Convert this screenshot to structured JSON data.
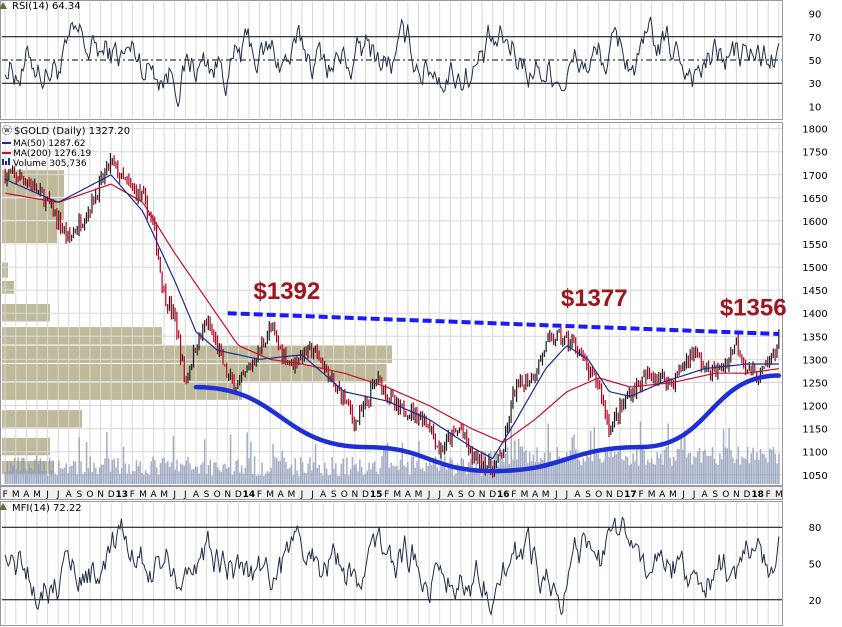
{
  "colors": {
    "background": "#ffffff",
    "grid": "#d8d8d8",
    "price_bar": "#1c1c1c",
    "down_bar": "#b3001b",
    "ma50": "#1c2a8c",
    "ma200": "#c8102e",
    "volume": "#8c98b8",
    "volume_by_price": "#b3ae88",
    "annotation_text": "#a0141e",
    "resistance_line": "#1a1aff",
    "cup_curve": "#1f2fd6",
    "indicator_line": "#1f2f4a",
    "overbought_fill": "#9e9a6c",
    "oversold_fill": "#b03a6a"
  },
  "chart_data": [
    {
      "type": "line",
      "panel": "rsi",
      "title": "RSI(14) 64.34",
      "ylim": [
        0,
        100
      ],
      "y_ticks": [
        "90",
        "70",
        "50",
        "30",
        "10"
      ],
      "reference_lines": [
        70,
        50,
        30
      ],
      "last_value": 64.34
    },
    {
      "type": "line",
      "panel": "price",
      "title": "$GOLD (Daily) 1327.20",
      "ylim": [
        1030,
        1810
      ],
      "y_ticks": [
        "1800",
        "1750",
        "1700",
        "1650",
        "1600",
        "1550",
        "1500",
        "1450",
        "1400",
        "1350",
        "1300",
        "1250",
        "1200",
        "1150",
        "1100",
        "1050"
      ],
      "x_ticks": [
        "F",
        "M",
        "A",
        "M",
        "J",
        "J",
        "A",
        "S",
        "O",
        "N",
        "D",
        "13",
        "F",
        "M",
        "A",
        "M",
        "J",
        "J",
        "A",
        "S",
        "O",
        "N",
        "D",
        "14",
        "F",
        "M",
        "A",
        "M",
        "J",
        "J",
        "A",
        "S",
        "O",
        "N",
        "D",
        "15",
        "F",
        "M",
        "A",
        "M",
        "J",
        "J",
        "A",
        "S",
        "O",
        "N",
        "D",
        "16",
        "F",
        "M",
        "A",
        "M",
        "J",
        "J",
        "A",
        "S",
        "O",
        "N",
        "D",
        "17",
        "F",
        "M",
        "A",
        "M",
        "J",
        "J",
        "A",
        "S",
        "O",
        "N",
        "D",
        "18",
        "F",
        "M"
      ],
      "year_ticks": [
        "13",
        "14",
        "15",
        "16",
        "17",
        "18"
      ],
      "series": [
        {
          "name": "MA(50) 1287.62",
          "last_value": 1287.62
        },
        {
          "name": "MA(200) 1276.19",
          "last_value": 1276.19
        },
        {
          "name": "Volume 305,736",
          "last_value": 305736
        }
      ],
      "price_path": [
        [
          0,
          1700
        ],
        [
          2,
          1690
        ],
        [
          4,
          1640
        ],
        [
          6,
          1560
        ],
        [
          8,
          1630
        ],
        [
          10,
          1730
        ],
        [
          11,
          1690
        ],
        [
          12,
          1670
        ],
        [
          13,
          1650
        ],
        [
          14,
          1590
        ],
        [
          15,
          1440
        ],
        [
          16,
          1390
        ],
        [
          17,
          1250
        ],
        [
          18,
          1330
        ],
        [
          19,
          1380
        ],
        [
          20,
          1330
        ],
        [
          21,
          1260
        ],
        [
          22,
          1240
        ],
        [
          23,
          1280
        ],
        [
          24,
          1320
        ],
        [
          25,
          1370
        ],
        [
          26,
          1320
        ],
        [
          27,
          1290
        ],
        [
          28,
          1310
        ],
        [
          29,
          1320
        ],
        [
          30,
          1290
        ],
        [
          31,
          1240
        ],
        [
          32,
          1220
        ],
        [
          33,
          1160
        ],
        [
          34,
          1200
        ],
        [
          35,
          1260
        ],
        [
          36,
          1230
        ],
        [
          37,
          1190
        ],
        [
          38,
          1190
        ],
        [
          39,
          1180
        ],
        [
          40,
          1160
        ],
        [
          41,
          1100
        ],
        [
          42,
          1130
        ],
        [
          43,
          1150
        ],
        [
          44,
          1090
        ],
        [
          45,
          1080
        ],
        [
          46,
          1060
        ],
        [
          47,
          1100
        ],
        [
          48,
          1230
        ],
        [
          49,
          1250
        ],
        [
          50,
          1270
        ],
        [
          51,
          1330
        ],
        [
          52,
          1350
        ],
        [
          53,
          1340
        ],
        [
          54,
          1330
        ],
        [
          55,
          1270
        ],
        [
          56,
          1250
        ],
        [
          57,
          1150
        ],
        [
          58,
          1190
        ],
        [
          59,
          1230
        ],
        [
          60,
          1250
        ],
        [
          61,
          1270
        ],
        [
          62,
          1260
        ],
        [
          63,
          1250
        ],
        [
          64,
          1290
        ],
        [
          65,
          1320
        ],
        [
          66,
          1280
        ],
        [
          67,
          1270
        ],
        [
          68,
          1290
        ],
        [
          69,
          1340
        ],
        [
          70,
          1280
        ],
        [
          71,
          1260
        ],
        [
          72,
          1290
        ],
        [
          73,
          1340
        ]
      ],
      "ma50_path": [
        [
          0,
          1690
        ],
        [
          5,
          1640
        ],
        [
          10,
          1700
        ],
        [
          13,
          1620
        ],
        [
          16,
          1470
        ],
        [
          18,
          1360
        ],
        [
          20,
          1320
        ],
        [
          24,
          1300
        ],
        [
          28,
          1310
        ],
        [
          32,
          1230
        ],
        [
          36,
          1210
        ],
        [
          40,
          1170
        ],
        [
          44,
          1110
        ],
        [
          46,
          1085
        ],
        [
          48,
          1160
        ],
        [
          51,
          1280
        ],
        [
          53,
          1330
        ],
        [
          55,
          1300
        ],
        [
          57,
          1230
        ],
        [
          59,
          1220
        ],
        [
          62,
          1250
        ],
        [
          66,
          1280
        ],
        [
          70,
          1290
        ],
        [
          73,
          1290
        ]
      ],
      "ma200_path": [
        [
          0,
          1660
        ],
        [
          5,
          1640
        ],
        [
          10,
          1680
        ],
        [
          13,
          1640
        ],
        [
          16,
          1530
        ],
        [
          19,
          1430
        ],
        [
          22,
          1330
        ],
        [
          25,
          1300
        ],
        [
          28,
          1290
        ],
        [
          32,
          1270
        ],
        [
          36,
          1240
        ],
        [
          40,
          1200
        ],
        [
          44,
          1150
        ],
        [
          47,
          1120
        ],
        [
          50,
          1170
        ],
        [
          53,
          1230
        ],
        [
          56,
          1260
        ],
        [
          59,
          1240
        ],
        [
          63,
          1250
        ],
        [
          67,
          1270
        ],
        [
          70,
          1270
        ],
        [
          73,
          1280
        ]
      ],
      "annotations": [
        {
          "text": "$1392",
          "x_index": 24,
          "price": 1392
        },
        {
          "text": "$1377",
          "x_index": 53,
          "price": 1377
        },
        {
          "text": "$1356",
          "x_index": 68,
          "price": 1356
        }
      ],
      "resistance_line": [
        [
          21,
          1400
        ],
        [
          73,
          1355
        ]
      ],
      "cup_curve": [
        [
          18,
          1240
        ],
        [
          34,
          1110
        ],
        [
          46,
          1058
        ],
        [
          60,
          1110
        ],
        [
          73,
          1265
        ]
      ]
    },
    {
      "type": "line",
      "panel": "mfi",
      "title": "MFI(14) 72.22",
      "ylim": [
        0,
        100
      ],
      "y_ticks": [
        "80",
        "50",
        "20"
      ],
      "reference_lines": [
        80,
        20
      ],
      "last_value": 72.22
    }
  ]
}
